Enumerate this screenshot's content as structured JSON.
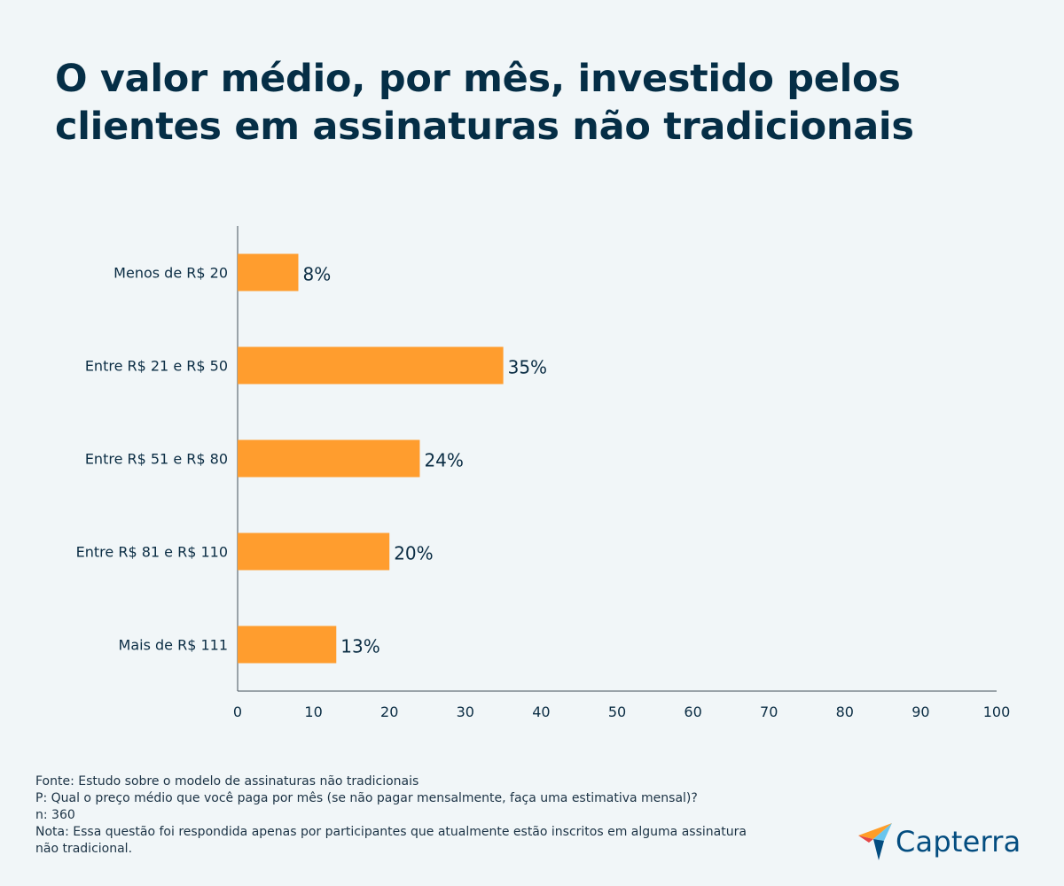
{
  "title": "O valor médio, por mês, investido pelos clientes em assinaturas não tradicionais",
  "colors": {
    "bar": "#ff9d2e",
    "text": "#0b2d44",
    "axis": "#42505a",
    "background": "#f1f6f8",
    "logo": "#044d80"
  },
  "chart_data": {
    "type": "bar",
    "orientation": "horizontal",
    "categories": [
      "Menos de R$ 20",
      "Entre R$ 21 e R$ 50",
      "Entre R$ 51 e R$ 80",
      "Entre R$ 81 e R$ 110",
      "Mais de R$ 111"
    ],
    "values": [
      8,
      35,
      24,
      20,
      13
    ],
    "data_labels": [
      "8%",
      "35%",
      "24%",
      "20%",
      "13%"
    ],
    "xlim": [
      0,
      100
    ],
    "xticks": [
      0,
      10,
      20,
      30,
      40,
      50,
      60,
      70,
      80,
      90,
      100
    ],
    "grid": false,
    "legend": "none"
  },
  "footer": {
    "source": "Fonte: Estudo sobre o modelo de assinaturas não tradicionais",
    "question": "P: Qual o preço médio que você paga por mês (se não pagar mensalmente, faça uma estimativa mensal)?",
    "sample": "n: 360",
    "note_line1": "Nota: Essa questão foi respondida apenas por participantes que atualmente estão inscritos em alguma assinatura",
    "note_line2": "não tradicional."
  },
  "logo": {
    "text": "Capterra",
    "icon": "capterra-logo-icon"
  }
}
